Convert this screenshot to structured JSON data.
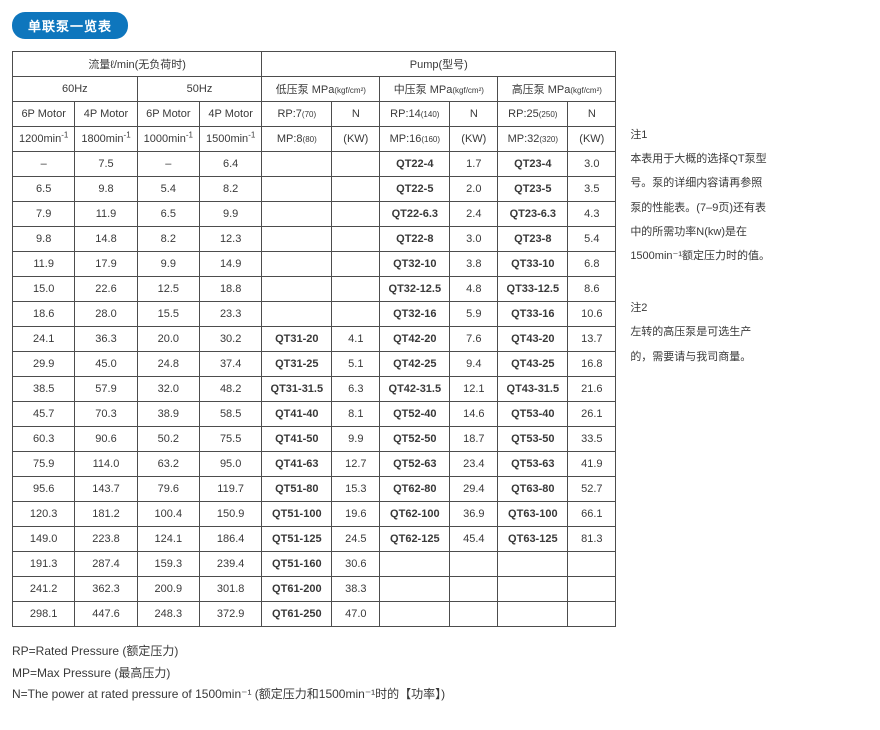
{
  "badge": "单联泵一览表",
  "headers": {
    "flow_group": "流量ℓ/min(无负荷时)",
    "pump_group": "Pump(型号)",
    "hz60": "60Hz",
    "hz50": "50Hz",
    "low_label": "低压泵",
    "mid_label": "中压泵",
    "high_label": "高压泵",
    "mpa_html": " MPa<span class=\"sub\">(kgf/cm²)</span>",
    "motor6p": "6P Motor",
    "motor4p": "4P Motor",
    "rp_low": "RP:7<span class=\"sub\">(70)</span>",
    "rp_mid": "RP:14<span class=\"sub\">(140)</span>",
    "rp_high": "RP:25<span class=\"sub\">(250)</span>",
    "n_label": "N",
    "mp_low": "MP:8<span class=\"sub\">(80)</span>",
    "mp_mid": "MP:16<span class=\"sub\">(160)</span>",
    "mp_high": "MP:32<span class=\"sub\">(320)</span>",
    "kw_label": "(KW)",
    "rpm1200": "1200min<sup>-1</sup>",
    "rpm1800": "1800min<sup>-1</sup>",
    "rpm1000": "1000min<sup>-1</sup>",
    "rpm1500": "1500min<sup>-1</sup>"
  },
  "rows": [
    {
      "f": [
        "–",
        "7.5",
        "–",
        "6.4"
      ],
      "low": [
        "",
        ""
      ],
      "mid": [
        "QT22-4",
        "1.7"
      ],
      "high": [
        "QT23-4",
        "3.0"
      ]
    },
    {
      "f": [
        "6.5",
        "9.8",
        "5.4",
        "8.2"
      ],
      "low": [
        "",
        ""
      ],
      "mid": [
        "QT22-5",
        "2.0"
      ],
      "high": [
        "QT23-5",
        "3.5"
      ]
    },
    {
      "f": [
        "7.9",
        "11.9",
        "6.5",
        "9.9"
      ],
      "low": [
        "",
        ""
      ],
      "mid": [
        "QT22-6.3",
        "2.4"
      ],
      "high": [
        "QT23-6.3",
        "4.3"
      ]
    },
    {
      "f": [
        "9.8",
        "14.8",
        "8.2",
        "12.3"
      ],
      "low": [
        "",
        ""
      ],
      "mid": [
        "QT22-8",
        "3.0"
      ],
      "high": [
        "QT23-8",
        "5.4"
      ]
    },
    {
      "f": [
        "11.9",
        "17.9",
        "9.9",
        "14.9"
      ],
      "low": [
        "",
        ""
      ],
      "mid": [
        "QT32-10",
        "3.8"
      ],
      "high": [
        "QT33-10",
        "6.8"
      ]
    },
    {
      "f": [
        "15.0",
        "22.6",
        "12.5",
        "18.8"
      ],
      "low": [
        "",
        ""
      ],
      "mid": [
        "QT32-12.5",
        "4.8"
      ],
      "high": [
        "QT33-12.5",
        "8.6"
      ]
    },
    {
      "f": [
        "18.6",
        "28.0",
        "15.5",
        "23.3"
      ],
      "low": [
        "",
        ""
      ],
      "mid": [
        "QT32-16",
        "5.9"
      ],
      "high": [
        "QT33-16",
        "10.6"
      ]
    },
    {
      "f": [
        "24.1",
        "36.3",
        "20.0",
        "30.2"
      ],
      "low": [
        "QT31-20",
        "4.1"
      ],
      "mid": [
        "QT42-20",
        "7.6"
      ],
      "high": [
        "QT43-20",
        "13.7"
      ]
    },
    {
      "f": [
        "29.9",
        "45.0",
        "24.8",
        "37.4"
      ],
      "low": [
        "QT31-25",
        "5.1"
      ],
      "mid": [
        "QT42-25",
        "9.4"
      ],
      "high": [
        "QT43-25",
        "16.8"
      ]
    },
    {
      "f": [
        "38.5",
        "57.9",
        "32.0",
        "48.2"
      ],
      "low": [
        "QT31-31.5",
        "6.3"
      ],
      "mid": [
        "QT42-31.5",
        "12.1"
      ],
      "high": [
        "QT43-31.5",
        "21.6"
      ]
    },
    {
      "f": [
        "45.7",
        "70.3",
        "38.9",
        "58.5"
      ],
      "low": [
        "QT41-40",
        "8.1"
      ],
      "mid": [
        "QT52-40",
        "14.6"
      ],
      "high": [
        "QT53-40",
        "26.1"
      ]
    },
    {
      "f": [
        "60.3",
        "90.6",
        "50.2",
        "75.5"
      ],
      "low": [
        "QT41-50",
        "9.9"
      ],
      "mid": [
        "QT52-50",
        "18.7"
      ],
      "high": [
        "QT53-50",
        "33.5"
      ]
    },
    {
      "f": [
        "75.9",
        "114.0",
        "63.2",
        "95.0"
      ],
      "low": [
        "QT41-63",
        "12.7"
      ],
      "mid": [
        "QT52-63",
        "23.4"
      ],
      "high": [
        "QT53-63",
        "41.9"
      ]
    },
    {
      "f": [
        "95.6",
        "143.7",
        "79.6",
        "119.7"
      ],
      "low": [
        "QT51-80",
        "15.3"
      ],
      "mid": [
        "QT62-80",
        "29.4"
      ],
      "high": [
        "QT63-80",
        "52.7"
      ]
    },
    {
      "f": [
        "120.3",
        "181.2",
        "100.4",
        "150.9"
      ],
      "low": [
        "QT51-100",
        "19.6"
      ],
      "mid": [
        "QT62-100",
        "36.9"
      ],
      "high": [
        "QT63-100",
        "66.1"
      ]
    },
    {
      "f": [
        "149.0",
        "223.8",
        "124.1",
        "186.4"
      ],
      "low": [
        "QT51-125",
        "24.5"
      ],
      "mid": [
        "QT62-125",
        "45.4"
      ],
      "high": [
        "QT63-125",
        "81.3"
      ]
    },
    {
      "f": [
        "191.3",
        "287.4",
        "159.3",
        "239.4"
      ],
      "low": [
        "QT51-160",
        "30.6"
      ],
      "mid": [
        "",
        ""
      ],
      "high": [
        "",
        ""
      ]
    },
    {
      "f": [
        "241.2",
        "362.3",
        "200.9",
        "301.8"
      ],
      "low": [
        "QT61-200",
        "38.3"
      ],
      "mid": [
        "",
        ""
      ],
      "high": [
        "",
        ""
      ]
    },
    {
      "f": [
        "298.1",
        "447.6",
        "248.3",
        "372.9"
      ],
      "low": [
        "QT61-250",
        "47.0"
      ],
      "mid": [
        "",
        ""
      ],
      "high": [
        "",
        ""
      ]
    }
  ],
  "notes": {
    "n1_title": "注1",
    "n1_body": "本表用于大概的选择QT泵型号。泵的详细内容请再参照泵的性能表。(7–9页)还有表中的所需功率N(kw)是在1500min⁻¹额定压力时的值。",
    "n2_title": "注2",
    "n2_body": "左转的高压泵是可选生产的，需要请与我司商量。"
  },
  "legend": {
    "l1": "RP=Rated Pressure (额定压力)",
    "l2": "MP=Max Pressure (最高压力)",
    "l3": "N=The power at rated pressure of 1500min⁻¹ (额定压力和1500min⁻¹时的【功率】)"
  }
}
